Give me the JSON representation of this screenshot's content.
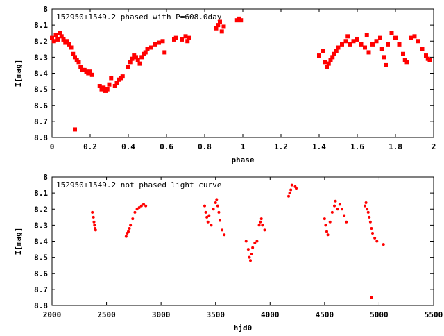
{
  "charts": [
    {
      "type": "scatter",
      "title": "152950+1549.2 phased with P=608.0day",
      "xlabel": "phase",
      "ylabel": "I[mag]",
      "xlim": [
        0,
        2
      ],
      "ylim": [
        8.8,
        8
      ],
      "x_ticks": [
        "0",
        "0.2",
        "0.4",
        "0.6",
        "0.8",
        "1",
        "1.2",
        "1.4",
        "1.6",
        "1.8",
        "2"
      ],
      "y_ticks": [
        "8",
        "8.1",
        "8.2",
        "8.3",
        "8.4",
        "8.5",
        "8.6",
        "8.7",
        "8.8"
      ],
      "point_color": "#ff0000",
      "grid": false,
      "points": [
        [
          0.0,
          8.18
        ],
        [
          0.01,
          8.2
        ],
        [
          0.02,
          8.16
        ],
        [
          0.03,
          8.19
        ],
        [
          0.04,
          8.15
        ],
        [
          0.05,
          8.17
        ],
        [
          0.06,
          8.19
        ],
        [
          0.07,
          8.21
        ],
        [
          0.08,
          8.2
        ],
        [
          0.09,
          8.22
        ],
        [
          0.1,
          8.24
        ],
        [
          0.11,
          8.28
        ],
        [
          0.12,
          8.3
        ],
        [
          0.13,
          8.32
        ],
        [
          0.14,
          8.33
        ],
        [
          0.15,
          8.36
        ],
        [
          0.16,
          8.38
        ],
        [
          0.17,
          8.38
        ],
        [
          0.18,
          8.39
        ],
        [
          0.19,
          8.4
        ],
        [
          0.2,
          8.39
        ],
        [
          0.21,
          8.41
        ],
        [
          0.12,
          8.75
        ],
        [
          0.25,
          8.48
        ],
        [
          0.26,
          8.5
        ],
        [
          0.27,
          8.49
        ],
        [
          0.28,
          8.51
        ],
        [
          0.29,
          8.5
        ],
        [
          0.3,
          8.47
        ],
        [
          0.31,
          8.43
        ],
        [
          0.33,
          8.48
        ],
        [
          0.34,
          8.46
        ],
        [
          0.35,
          8.44
        ],
        [
          0.36,
          8.43
        ],
        [
          0.37,
          8.42
        ],
        [
          0.4,
          8.36
        ],
        [
          0.41,
          8.33
        ],
        [
          0.42,
          8.31
        ],
        [
          0.43,
          8.29
        ],
        [
          0.44,
          8.3
        ],
        [
          0.45,
          8.32
        ],
        [
          0.46,
          8.34
        ],
        [
          0.47,
          8.3
        ],
        [
          0.48,
          8.28
        ],
        [
          0.49,
          8.27
        ],
        [
          0.5,
          8.25
        ],
        [
          0.52,
          8.24
        ],
        [
          0.54,
          8.22
        ],
        [
          0.56,
          8.21
        ],
        [
          0.58,
          8.2
        ],
        [
          0.59,
          8.27
        ],
        [
          0.64,
          8.19
        ],
        [
          0.65,
          8.18
        ],
        [
          0.68,
          8.19
        ],
        [
          0.7,
          8.17
        ],
        [
          0.71,
          8.2
        ],
        [
          0.72,
          8.18
        ],
        [
          0.86,
          8.12
        ],
        [
          0.87,
          8.1
        ],
        [
          0.88,
          8.08
        ],
        [
          0.89,
          8.14
        ],
        [
          0.9,
          8.11
        ],
        [
          0.97,
          8.07
        ],
        [
          0.98,
          8.06
        ],
        [
          0.99,
          8.07
        ],
        [
          1.4,
          8.29
        ],
        [
          1.42,
          8.26
        ],
        [
          1.43,
          8.33
        ],
        [
          1.44,
          8.36
        ],
        [
          1.45,
          8.34
        ],
        [
          1.46,
          8.32
        ],
        [
          1.47,
          8.3
        ],
        [
          1.48,
          8.28
        ],
        [
          1.49,
          8.26
        ],
        [
          1.5,
          8.24
        ],
        [
          1.52,
          8.22
        ],
        [
          1.54,
          8.2
        ],
        [
          1.55,
          8.17
        ],
        [
          1.56,
          8.22
        ],
        [
          1.58,
          8.2
        ],
        [
          1.6,
          8.19
        ],
        [
          1.62,
          8.22
        ],
        [
          1.64,
          8.24
        ],
        [
          1.65,
          8.16
        ],
        [
          1.66,
          8.27
        ],
        [
          1.68,
          8.22
        ],
        [
          1.7,
          8.2
        ],
        [
          1.72,
          8.18
        ],
        [
          1.73,
          8.25
        ],
        [
          1.74,
          8.3
        ],
        [
          1.75,
          8.35
        ],
        [
          1.76,
          8.22
        ],
        [
          1.78,
          8.15
        ],
        [
          1.8,
          8.18
        ],
        [
          1.82,
          8.22
        ],
        [
          1.84,
          8.28
        ],
        [
          1.85,
          8.32
        ],
        [
          1.86,
          8.33
        ],
        [
          1.88,
          8.18
        ],
        [
          1.9,
          8.17
        ],
        [
          1.92,
          8.2
        ],
        [
          1.94,
          8.25
        ],
        [
          1.96,
          8.29
        ],
        [
          1.97,
          8.31
        ],
        [
          1.98,
          8.32
        ]
      ]
    },
    {
      "type": "scatter",
      "title": "152950+1549.2 not phased light curve",
      "xlabel": "hjd0",
      "ylabel": "I[mag]",
      "xlim": [
        2000,
        5500
      ],
      "ylim": [
        8.8,
        8
      ],
      "x_ticks": [
        "2000",
        "2500",
        "3000",
        "3500",
        "4000",
        "4500",
        "5000",
        "5500"
      ],
      "y_ticks": [
        "8",
        "8.1",
        "8.2",
        "8.3",
        "8.4",
        "8.5",
        "8.6",
        "8.7",
        "8.8"
      ],
      "point_color": "#ff0000",
      "grid": false,
      "points": [
        [
          2370,
          8.22
        ],
        [
          2380,
          8.25
        ],
        [
          2385,
          8.28
        ],
        [
          2390,
          8.3
        ],
        [
          2395,
          8.32
        ],
        [
          2400,
          8.33
        ],
        [
          2680,
          8.37
        ],
        [
          2690,
          8.35
        ],
        [
          2700,
          8.34
        ],
        [
          2710,
          8.32
        ],
        [
          2720,
          8.3
        ],
        [
          2740,
          8.26
        ],
        [
          2760,
          8.22
        ],
        [
          2780,
          8.2
        ],
        [
          2800,
          8.19
        ],
        [
          2820,
          8.18
        ],
        [
          2840,
          8.17
        ],
        [
          2860,
          8.18
        ],
        [
          3400,
          8.18
        ],
        [
          3410,
          8.22
        ],
        [
          3420,
          8.25
        ],
        [
          3430,
          8.28
        ],
        [
          3440,
          8.24
        ],
        [
          3460,
          8.3
        ],
        [
          3480,
          8.2
        ],
        [
          3500,
          8.16
        ],
        [
          3510,
          8.14
        ],
        [
          3520,
          8.18
        ],
        [
          3530,
          8.22
        ],
        [
          3540,
          8.27
        ],
        [
          3560,
          8.33
        ],
        [
          3580,
          8.36
        ],
        [
          3780,
          8.4
        ],
        [
          3800,
          8.45
        ],
        [
          3810,
          8.5
        ],
        [
          3820,
          8.52
        ],
        [
          3830,
          8.48
        ],
        [
          3840,
          8.44
        ],
        [
          3860,
          8.41
        ],
        [
          3880,
          8.4
        ],
        [
          3900,
          8.3
        ],
        [
          3910,
          8.28
        ],
        [
          3920,
          8.26
        ],
        [
          3930,
          8.3
        ],
        [
          3950,
          8.33
        ],
        [
          4170,
          8.12
        ],
        [
          4180,
          8.1
        ],
        [
          4190,
          8.08
        ],
        [
          4200,
          8.05
        ],
        [
          4230,
          8.06
        ],
        [
          4240,
          8.07
        ],
        [
          4500,
          8.26
        ],
        [
          4510,
          8.3
        ],
        [
          4520,
          8.34
        ],
        [
          4530,
          8.36
        ],
        [
          4550,
          8.28
        ],
        [
          4570,
          8.22
        ],
        [
          4590,
          8.18
        ],
        [
          4600,
          8.15
        ],
        [
          4620,
          8.2
        ],
        [
          4640,
          8.17
        ],
        [
          4660,
          8.2
        ],
        [
          4680,
          8.24
        ],
        [
          4700,
          8.28
        ],
        [
          4870,
          8.18
        ],
        [
          4880,
          8.16
        ],
        [
          4890,
          8.2
        ],
        [
          4900,
          8.22
        ],
        [
          4910,
          8.25
        ],
        [
          4920,
          8.28
        ],
        [
          4930,
          8.32
        ],
        [
          4940,
          8.35
        ],
        [
          4960,
          8.38
        ],
        [
          4980,
          8.4
        ],
        [
          5040,
          8.42
        ],
        [
          4930,
          8.75
        ]
      ]
    }
  ]
}
